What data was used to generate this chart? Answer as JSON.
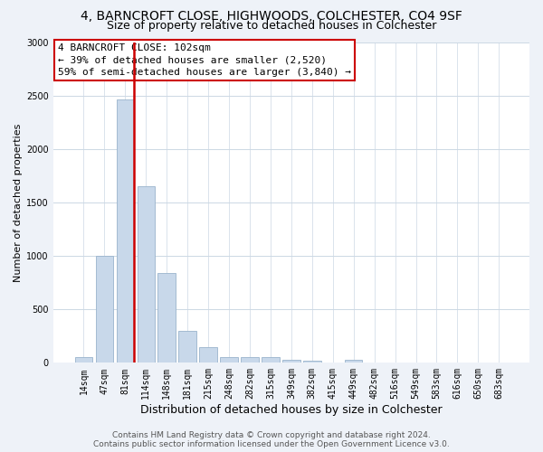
{
  "title": "4, BARNCROFT CLOSE, HIGHWOODS, COLCHESTER, CO4 9SF",
  "subtitle": "Size of property relative to detached houses in Colchester",
  "xlabel": "Distribution of detached houses by size in Colchester",
  "ylabel": "Number of detached properties",
  "categories": [
    "14sqm",
    "47sqm",
    "81sqm",
    "114sqm",
    "148sqm",
    "181sqm",
    "215sqm",
    "248sqm",
    "282sqm",
    "315sqm",
    "349sqm",
    "382sqm",
    "415sqm",
    "449sqm",
    "482sqm",
    "516sqm",
    "549sqm",
    "583sqm",
    "616sqm",
    "650sqm",
    "683sqm"
  ],
  "values": [
    55,
    1000,
    2460,
    1650,
    840,
    300,
    145,
    55,
    50,
    55,
    30,
    20,
    0,
    30,
    0,
    0,
    0,
    0,
    0,
    0,
    0
  ],
  "bar_color": "#c8d8ea",
  "bar_edge_color": "#9ab4cc",
  "highlight_bar_index": 2,
  "highlight_line_color": "#cc0000",
  "annotation_line1": "4 BARNCROFT CLOSE: 102sqm",
  "annotation_line2": "← 39% of detached houses are smaller (2,520)",
  "annotation_line3": "59% of semi-detached houses are larger (3,840) →",
  "annotation_box_edgecolor": "#cc0000",
  "ylim": [
    0,
    3000
  ],
  "yticks": [
    0,
    500,
    1000,
    1500,
    2000,
    2500,
    3000
  ],
  "footer_line1": "Contains HM Land Registry data © Crown copyright and database right 2024.",
  "footer_line2": "Contains public sector information licensed under the Open Government Licence v3.0.",
  "title_fontsize": 10,
  "subtitle_fontsize": 9,
  "xlabel_fontsize": 9,
  "ylabel_fontsize": 8,
  "tick_fontsize": 7,
  "annot_fontsize": 8,
  "footer_fontsize": 6.5,
  "background_color": "#eef2f8",
  "plot_bg_color": "#ffffff",
  "grid_color": "#ccd8e4"
}
